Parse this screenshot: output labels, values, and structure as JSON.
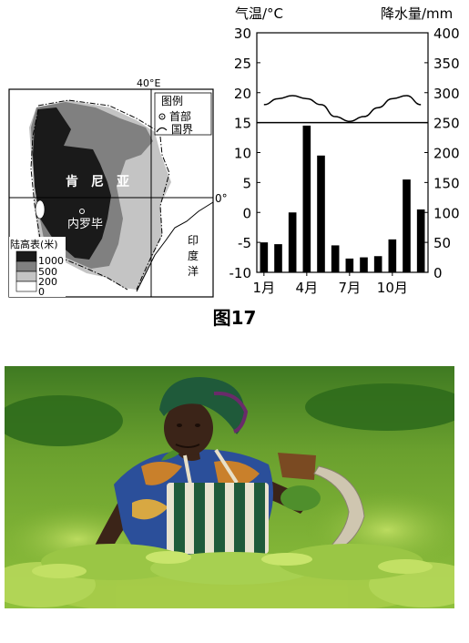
{
  "figure_caption": "图17",
  "map": {
    "longitude_label": "40°E",
    "equator_label": "0°",
    "legend_title": "图例",
    "legend_capital": "首部",
    "legend_border": "国界",
    "country": "肯尼亚",
    "capital": "内罗毕",
    "ocean": "印度洋",
    "elevation_title": "陆高表(米)",
    "elevation_levels": [
      "1000",
      "500",
      "200",
      "0"
    ],
    "colors": {
      "level_1000": "#1a1a1a",
      "level_500": "#808080",
      "level_200": "#c4c4c4",
      "level_0": "#ffffff"
    }
  },
  "chart_data": {
    "type": "bar+line",
    "left_axis_label": "气温/°C",
    "right_axis_label": "降水量/mm",
    "left_ticks": [
      "30",
      "25",
      "20",
      "15",
      "10",
      "5",
      "0",
      "-5",
      "-10"
    ],
    "right_ticks": [
      "400",
      "350",
      "300",
      "250",
      "200",
      "150",
      "100",
      "50",
      "0"
    ],
    "x_tick_labels": [
      "1月",
      "4月",
      "7月",
      "10月"
    ],
    "temp_ylim": [
      -10,
      30
    ],
    "precip_ylim": [
      0,
      400
    ],
    "months": [
      1,
      2,
      3,
      4,
      5,
      6,
      7,
      8,
      9,
      10,
      11,
      12
    ],
    "temperature": [
      18,
      19,
      19.5,
      19,
      18,
      16,
      15.2,
      16,
      17.5,
      19,
      19.5,
      18
    ],
    "precipitation": [
      50,
      47,
      100,
      245,
      195,
      45,
      23,
      25,
      27,
      55,
      155,
      105
    ],
    "reference_line_temp": 15,
    "bar_color": "#000000"
  },
  "photo": {
    "colors": {
      "field_dark": "#2f6b1c",
      "field_mid": "#5f9a2a",
      "field_light": "#a8cd4a",
      "skin": "#3b2418",
      "basket_green": "#1f5a3a",
      "cloth_blue": "#2b4f9a",
      "cloth_orange": "#c9802b"
    }
  }
}
